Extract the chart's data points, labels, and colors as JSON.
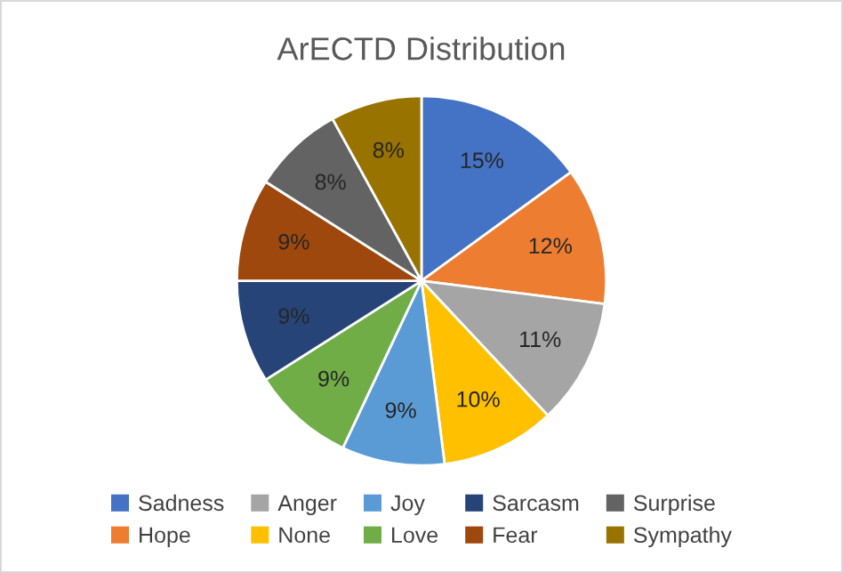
{
  "chart_data": {
    "type": "pie",
    "title": "ArECTD Distribution",
    "categories": [
      "Sadness",
      "Hope",
      "Anger",
      "None",
      "Joy",
      "Love",
      "Sarcasm",
      "Fear",
      "Surprise",
      "Sympathy"
    ],
    "values": [
      15,
      12,
      11,
      10,
      9,
      9,
      9,
      9,
      8,
      8
    ],
    "colors": [
      "#4472c4",
      "#ed7d31",
      "#a5a5a5",
      "#ffc000",
      "#5b9bd5",
      "#70ad47",
      "#264478",
      "#9e480e",
      "#636363",
      "#997300"
    ],
    "value_labels": [
      "15%",
      "12%",
      "11%",
      "10%",
      "9%",
      "9%",
      "9%",
      "9%",
      "8%",
      "8%"
    ],
    "legend": "bottom"
  }
}
